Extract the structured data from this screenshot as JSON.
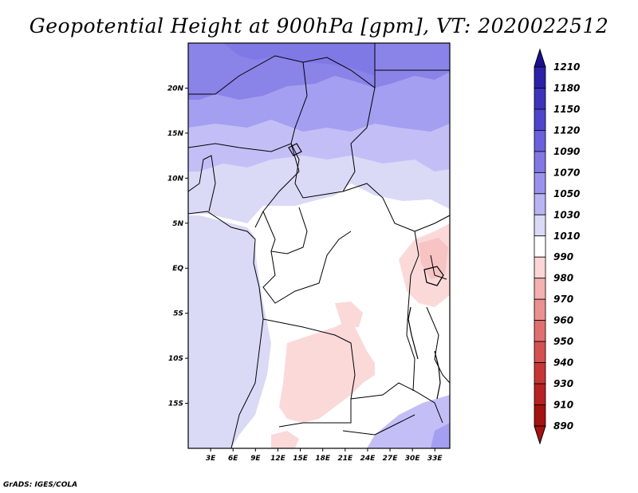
{
  "title": "Geopotential Height at 900hPa [gpm], VT: 2020022512",
  "credit": "GrADS: IGES/COLA",
  "map": {
    "lat_labels": [
      "20N",
      "15N",
      "10N",
      "5N",
      "EQ",
      "5S",
      "10S",
      "15S"
    ],
    "lat_values": [
      20,
      15,
      10,
      5,
      0,
      -5,
      -10,
      -15
    ],
    "lon_labels": [
      "3E",
      "6E",
      "9E",
      "12E",
      "15E",
      "18E",
      "21E",
      "24E",
      "27E",
      "30E",
      "33E"
    ],
    "lon_values": [
      3,
      6,
      9,
      12,
      15,
      18,
      21,
      24,
      27,
      30,
      33
    ],
    "lon_range": [
      0,
      35
    ],
    "lat_range": [
      -20,
      25
    ]
  },
  "colorbar": {
    "levels": [
      "1210",
      "1180",
      "1150",
      "1120",
      "1090",
      "1070",
      "1050",
      "1030",
      "1010",
      "990",
      "980",
      "970",
      "960",
      "950",
      "940",
      "930",
      "910",
      "890"
    ],
    "colors": [
      "#1a1090",
      "#2c22a8",
      "#3d33bb",
      "#4f45cc",
      "#6a60dd",
      "#8278e4",
      "#9b93eb",
      "#b9b4f2",
      "#dadaf7",
      "#ffffff",
      "#fbd6d6",
      "#f4b1b1",
      "#eb9090",
      "#e07070",
      "#d55151",
      "#c83535",
      "#b82222",
      "#a51212"
    ]
  },
  "colors": {
    "blue_dark": "#7f79e6",
    "blue_mid": "#a49ff0",
    "blue_light": "#c3bff6",
    "blue_pale": "#dadaf7",
    "white": "#ffffff",
    "pink_pale": "#fbd9d9",
    "pink": "#f7c3c3"
  }
}
